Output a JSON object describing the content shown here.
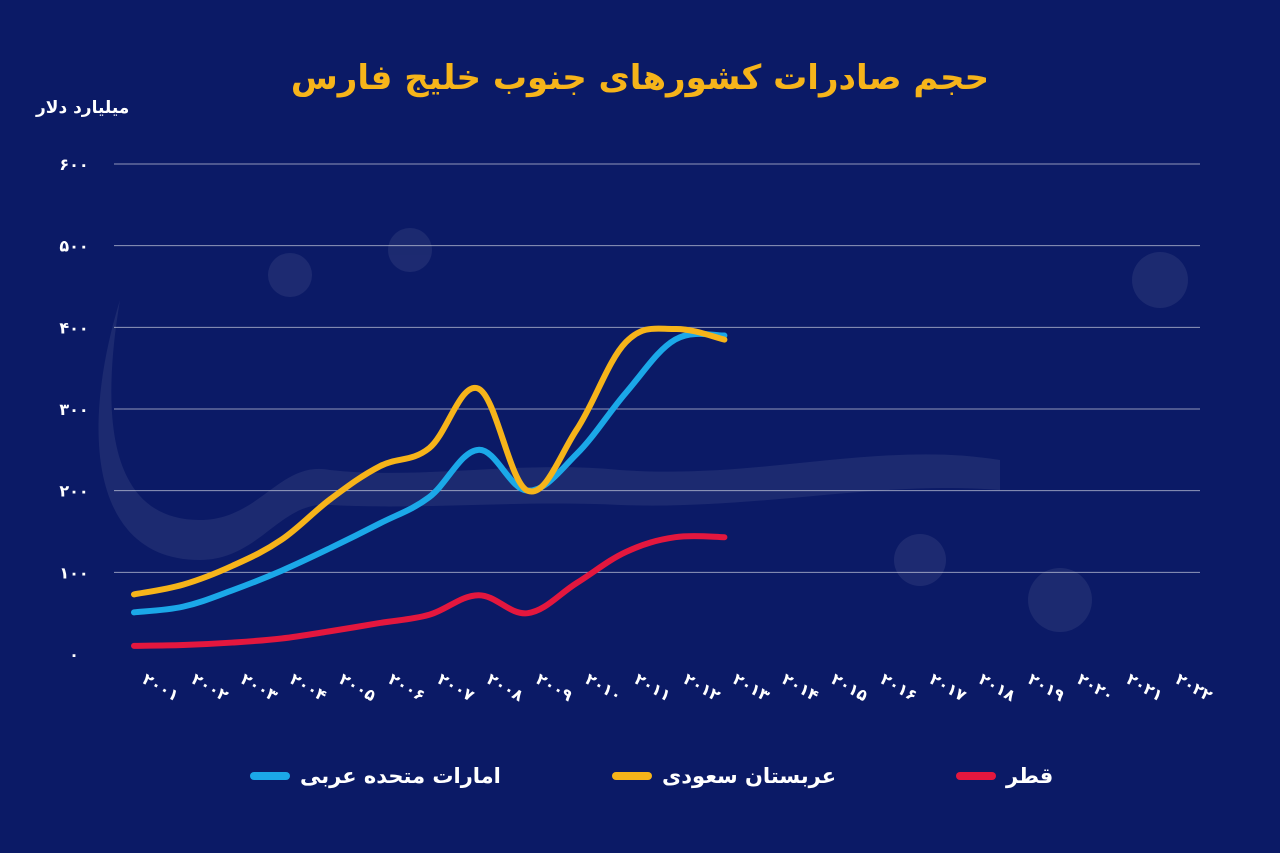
{
  "chart_data": {
    "type": "line",
    "title": "حجم صادرات کشورهای جنوب خلیج فارس",
    "ylabel": "میلیارد دلار",
    "ylim": [
      0,
      600
    ],
    "yticks": [
      "۰",
      "۱۰۰",
      "۲۰۰",
      "۳۰۰",
      "۴۰۰",
      "۵۰۰",
      "۶۰۰"
    ],
    "ytick_values": [
      0,
      100,
      200,
      300,
      400,
      500,
      600
    ],
    "categories": [
      "۲۰۰۱",
      "۲۰۰۲",
      "۲۰۰۳",
      "۲۰۰۴",
      "۲۰۰۵",
      "۲۰۰۶",
      "۲۰۰۷",
      "۲۰۰۸",
      "۲۰۰۹",
      "۲۰۱۰",
      "۲۰۱۱",
      "۲۰۱۲",
      "۲۰۱۳",
      "۲۰۱۴",
      "۲۰۱۵",
      "۲۰۱۶",
      "۲۰۱۷",
      "۲۰۱۸",
      "۲۰۱۹",
      "۲۰۲۰",
      "۲۰۲۱",
      "۲۰۲۲"
    ],
    "grid": true,
    "legend_position": "bottom",
    "series": [
      {
        "name": "امارات متحده عربی",
        "color": "#1ba8e8",
        "values": [
          51,
          58,
          78,
          102,
          130,
          160,
          192,
          250,
          200,
          245,
          320,
          385,
          390,
          null,
          null,
          null,
          null,
          null,
          null,
          null,
          null,
          null
        ]
      },
      {
        "name": "عربستان سعودی",
        "color": "#f6b41a",
        "values": [
          73,
          85,
          108,
          140,
          190,
          230,
          252,
          325,
          200,
          275,
          382,
          398,
          385,
          null,
          null,
          null,
          null,
          null,
          null,
          null,
          null,
          null
        ]
      },
      {
        "name": "قطر",
        "color": "#e3173e",
        "values": [
          10,
          11,
          14,
          19,
          28,
          38,
          48,
          72,
          50,
          87,
          125,
          143,
          143,
          null,
          null,
          null,
          null,
          null,
          null,
          null,
          null,
          null
        ]
      }
    ]
  }
}
